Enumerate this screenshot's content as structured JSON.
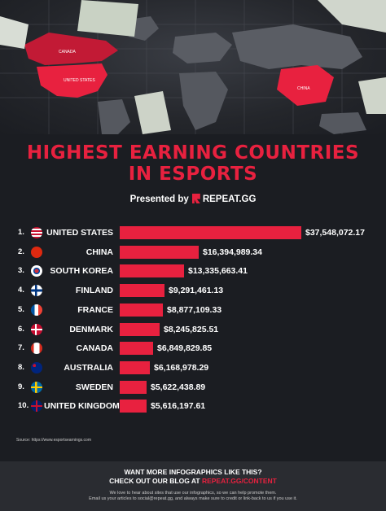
{
  "header": {
    "title_line1": "HIGHEST EARNING COUNTRIES",
    "title_line2": "IN ESPORTS",
    "presented_by": "Presented by",
    "brand": "REPEAT.GG",
    "map_labels": [
      "CANADA",
      "UNITED STATES",
      "CHINA"
    ]
  },
  "colors": {
    "accent": "#e8213f",
    "background": "#1b1d22",
    "footer_bg": "#2a2c31",
    "text": "#ffffff"
  },
  "chart_data": {
    "type": "bar",
    "orientation": "horizontal",
    "title": "HIGHEST EARNING COUNTRIES IN ESPORTS",
    "categories": [
      "UNITED STATES",
      "CHINA",
      "SOUTH KOREA",
      "FINLAND",
      "FRANCE",
      "DENMARK",
      "CANADA",
      "AUSTRALIA",
      "SWEDEN",
      "UNITED KINGDOM"
    ],
    "ranks": [
      "1.",
      "2.",
      "3.",
      "4.",
      "5.",
      "6.",
      "7.",
      "8.",
      "9.",
      "10."
    ],
    "values": [
      37548072.17,
      16394989.34,
      13335663.41,
      9291461.13,
      8877109.33,
      8245825.51,
      6849829.85,
      6168978.29,
      5622438.89,
      5616197.61
    ],
    "value_labels": [
      "$37,548,072.17",
      "$16,394,989.34",
      "$13,335,663.41",
      "$9,291,461.13",
      "$8,877,109.33",
      "$8,245,825.51",
      "$6,849,829.85",
      "$6,168,978.29",
      "$5,622,438.89",
      "$5,616,197.61"
    ],
    "flag_icons": [
      "flag-us-icon",
      "flag-cn-icon",
      "flag-kr-icon",
      "flag-fi-icon",
      "flag-fr-icon",
      "flag-dk-icon",
      "flag-ca-icon",
      "flag-au-icon",
      "flag-se-icon",
      "flag-gb-icon"
    ],
    "bar_color": "#e8213f",
    "legend": "none",
    "grid": false
  },
  "source": "Source: https://www.esportsearnings.com",
  "footer": {
    "cta_line1": "WANT MORE INFOGRAPHICS LIKE THIS?",
    "cta_line2_prefix": "CHECK OUT OUR BLOG AT",
    "cta_link": "REPEAT.GG/CONTENT",
    "note_line1": "We love to hear about sites that use our infographics, so we can help promote them.",
    "note_line2": "Email us your articles to social@repeat.gg, and always make sure to credit or link-back to us if you use it."
  }
}
